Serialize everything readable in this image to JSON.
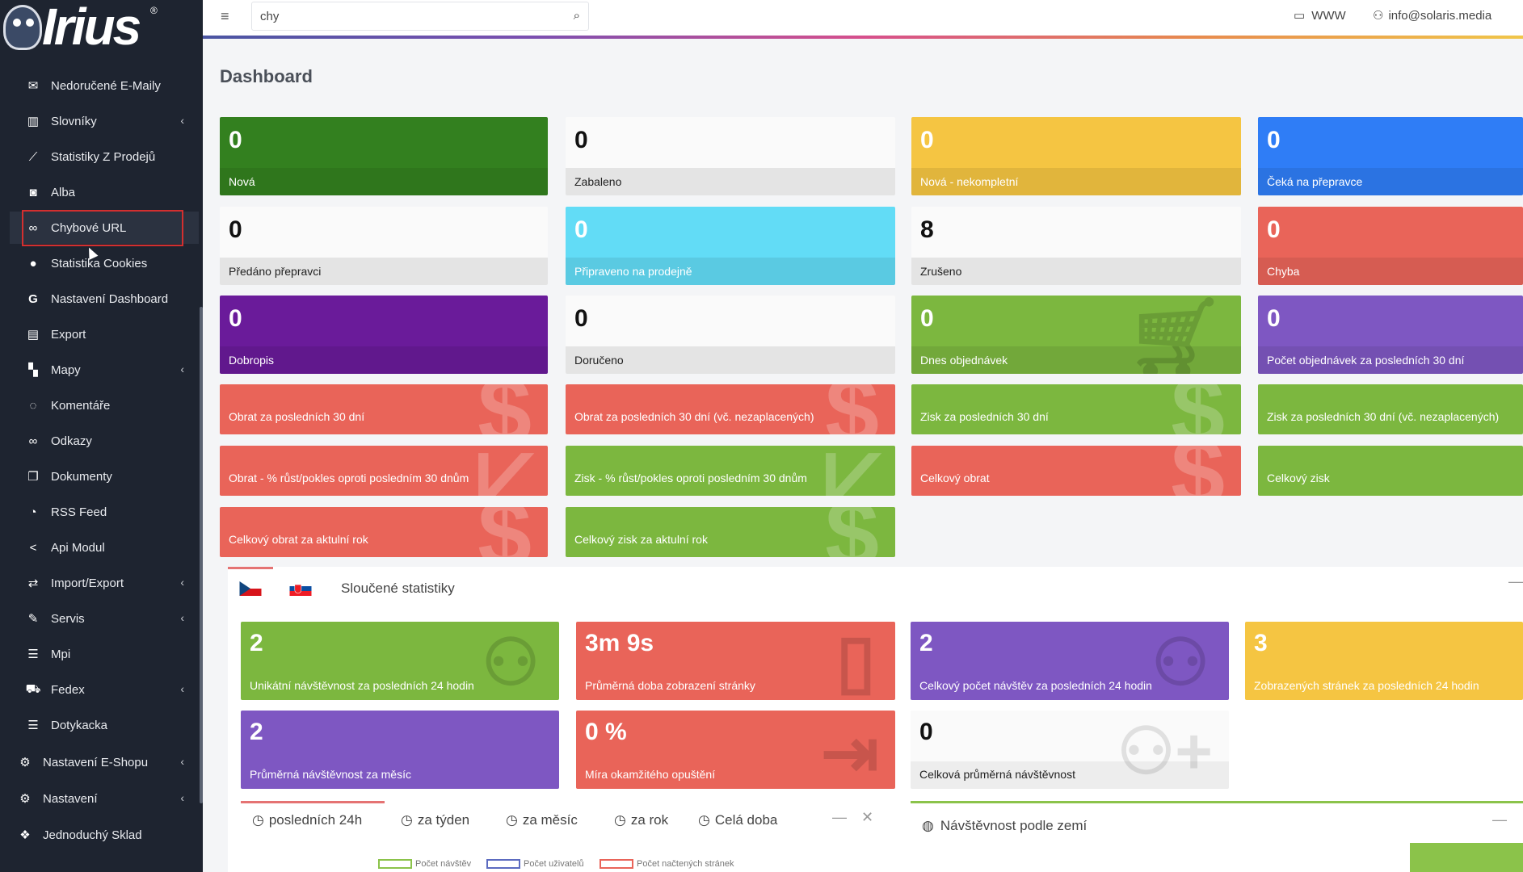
{
  "logo": {
    "text": "Irius",
    "reg": "®"
  },
  "topbar": {
    "search_value": "chy",
    "www_label": "WWW",
    "user_email": "info@solaris.media"
  },
  "sidebar": {
    "items": [
      {
        "label": "Nedoručené E-Maily"
      },
      {
        "label": "Slovníky"
      },
      {
        "label": "Statistiky Z Prodejů"
      },
      {
        "label": "Alba"
      },
      {
        "label": "Chybové URL"
      },
      {
        "label": "Statistika Cookies"
      },
      {
        "label": "Nastavení Dashboard"
      },
      {
        "label": "Export"
      },
      {
        "label": "Mapy"
      },
      {
        "label": "Komentáře"
      },
      {
        "label": "Odkazy"
      },
      {
        "label": "Dokumenty"
      },
      {
        "label": "RSS Feed"
      },
      {
        "label": "Api Modul"
      },
      {
        "label": "Import/Export"
      },
      {
        "label": "Servis"
      },
      {
        "label": "Mpi"
      },
      {
        "label": "Fedex"
      },
      {
        "label": "Dotykacka"
      },
      {
        "label": "Nastavení E-Shopu"
      },
      {
        "label": "Nastavení"
      },
      {
        "label": "Jednoduchý Sklad"
      }
    ]
  },
  "main": {
    "title": "Dashboard",
    "cards": [
      {
        "value": "0",
        "label": "Nová",
        "color": "#33801f"
      },
      {
        "value": "0",
        "label": "Zabaleno",
        "color": "#fafafa"
      },
      {
        "value": "0",
        "label": "Nová - nekompletní",
        "color": "#f5c542"
      },
      {
        "value": "0",
        "label": "Čeká na přepravce",
        "color": "#2f7df6"
      },
      {
        "value": "0",
        "label": "Předáno přepravci",
        "color": "#fafafa"
      },
      {
        "value": "0",
        "label": "Připraveno na prodejně",
        "color": "#62dcf6"
      },
      {
        "value": "8",
        "label": "Zrušeno",
        "color": "#fafafa"
      },
      {
        "value": "0",
        "label": "Chyba",
        "color": "#e96459"
      },
      {
        "value": "0",
        "label": "Dobropis",
        "color": "#6a1b9a"
      },
      {
        "value": "0",
        "label": "Doručeno",
        "color": "#fafafa"
      },
      {
        "value": "0",
        "label": "Dnes objednávek",
        "color": "#7cb73f"
      },
      {
        "value": "0",
        "label": "Počet objednávek za posledních 30 dní",
        "color": "#7e57c2"
      }
    ],
    "strips": [
      {
        "label": "Obrat za posledních 30 dní",
        "color": "#e96459"
      },
      {
        "label": "Obrat za posledních 30 dní (vč. nezaplacených)",
        "color": "#e96459"
      },
      {
        "label": "Zisk za posledních 30 dní",
        "color": "#7cb73f"
      },
      {
        "label": "Zisk za posledních 30 dní (vč. nezaplacených)",
        "color": "#7cb73f"
      },
      {
        "label": "Obrat - % růst/pokles oproti posledním 30 dnům",
        "color": "#e96459"
      },
      {
        "label": "Zisk - % růst/pokles oproti posledním 30 dnům",
        "color": "#7cb73f"
      },
      {
        "label": "Celkový obrat",
        "color": "#e96459"
      },
      {
        "label": "Celkový zisk",
        "color": "#7cb73f"
      },
      {
        "label": "Celkový obrat za aktulní rok",
        "color": "#e96459"
      },
      {
        "label": "Celkový zisk za aktulní rok",
        "color": "#7cb73f"
      }
    ]
  },
  "stats": {
    "title": "Sloučené statistiky",
    "cards": [
      {
        "value": "2",
        "label": "Unikátní návštěvnost za posledních 24 hodin",
        "color": "#7cb73f"
      },
      {
        "value": "3m 9s",
        "label": "Průměrná doba zobrazení stránky",
        "color": "#e96459"
      },
      {
        "value": "2",
        "label": "Celkový počet návštěv za posledních 24 hodin",
        "color": "#7e57c2"
      },
      {
        "value": "3",
        "label": "Zobrazených stránek za posledních 24 hodin",
        "color": "#f5c542"
      },
      {
        "value": "2",
        "label": "Průměrná návštěvnost za měsíc",
        "color": "#7e57c2"
      },
      {
        "value": "0 %",
        "label": "Míra okamžitého opuštění",
        "color": "#e96459"
      },
      {
        "value": "0",
        "label": "Celková průměrná návštěvnost",
        "color": "#fafafa"
      }
    ]
  },
  "periods": {
    "tabs": [
      "posledních 24h",
      "za týden",
      "za měsíc",
      "za rok",
      "Celá doba"
    ],
    "legend": [
      "Počet návštěv",
      "Počet uživatelů",
      "Počet načtených stránek"
    ]
  },
  "countries": {
    "title": "Návštěvnost podle zemí"
  }
}
